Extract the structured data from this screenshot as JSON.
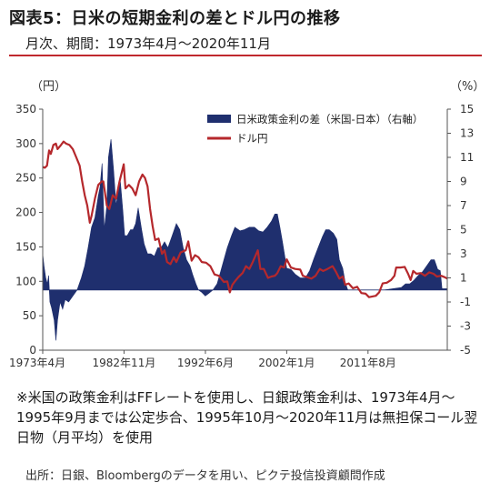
{
  "header": {
    "title": "図表5：日米の短期金利の差とドル円の推移",
    "subtitle": "月次、期間：1973年4月～2020年11月"
  },
  "footer": {
    "note": "※米国の政策金利はFFレートを使用し、日銀政策金利は、1973年4月～1995年9月までは公定歩合、1995年10月～2020年11月は無担保コール翌日物（月平均）を使用",
    "source": "出所：日銀、Bloombergのデータを用い、ピクテ投信投資顧問作成"
  },
  "chart_data": {
    "type": "area",
    "left_axis": {
      "unit": "（円）",
      "min": 0,
      "max": 350,
      "ticks": [
        0,
        50,
        100,
        150,
        200,
        250,
        300,
        350
      ]
    },
    "right_axis": {
      "unit": "（%）",
      "min": -5,
      "max": 15,
      "ticks": [
        -5,
        -3,
        -1,
        1,
        3,
        5,
        7,
        9,
        11,
        13,
        15
      ]
    },
    "x_axis": {
      "min": 1973.25,
      "max": 2020.92,
      "ticks": [
        {
          "value": 1973.25,
          "label": "1973年4月"
        },
        {
          "value": 1982.83,
          "label": "1982年11月"
        },
        {
          "value": 1992.42,
          "label": "1992年6月"
        },
        {
          "value": 2002.0,
          "label": "2002年1月"
        },
        {
          "value": 2011.58,
          "label": "2011年8月"
        }
      ]
    },
    "legend_position": "top-right",
    "colors": {
      "spread": "#1f2f6e",
      "usdjpy": "#b5282c",
      "axis": "#555555",
      "gridline": "#dddddd"
    },
    "series": [
      {
        "name": "日米政策金利の差（米国-日本）（右軸）",
        "kind": "area",
        "axis": "right",
        "points": [
          [
            1973.25,
            3.0
          ],
          [
            1973.4,
            2.0
          ],
          [
            1973.6,
            1.0
          ],
          [
            1973.8,
            0.5
          ],
          [
            1973.95,
            1.2
          ],
          [
            1974.1,
            -1.0
          ],
          [
            1974.3,
            -1.5
          ],
          [
            1974.6,
            -2.5
          ],
          [
            1974.8,
            -4.2
          ],
          [
            1975.0,
            -2.5
          ],
          [
            1975.3,
            -1.0
          ],
          [
            1975.6,
            -1.6
          ],
          [
            1975.9,
            -0.8
          ],
          [
            1976.3,
            -1.0
          ],
          [
            1976.8,
            -0.5
          ],
          [
            1977.3,
            0.0
          ],
          [
            1977.8,
            1.0
          ],
          [
            1978.2,
            2.0
          ],
          [
            1978.6,
            3.5
          ],
          [
            1979.0,
            5.2
          ],
          [
            1979.4,
            6.0
          ],
          [
            1979.8,
            7.8
          ],
          [
            1980.0,
            8.5
          ],
          [
            1980.25,
            10.5
          ],
          [
            1980.5,
            5.0
          ],
          [
            1980.8,
            7.0
          ],
          [
            1981.0,
            11.0
          ],
          [
            1981.3,
            12.5
          ],
          [
            1981.6,
            10.0
          ],
          [
            1981.9,
            7.0
          ],
          [
            1982.1,
            8.0
          ],
          [
            1982.4,
            9.0
          ],
          [
            1982.7,
            6.5
          ],
          [
            1982.9,
            4.5
          ],
          [
            1983.2,
            4.5
          ],
          [
            1983.6,
            5.0
          ],
          [
            1983.9,
            5.0
          ],
          [
            1984.2,
            5.5
          ],
          [
            1984.5,
            6.8
          ],
          [
            1984.9,
            5.0
          ],
          [
            1985.2,
            3.8
          ],
          [
            1985.6,
            3.0
          ],
          [
            1986.0,
            3.0
          ],
          [
            1986.4,
            2.8
          ],
          [
            1986.8,
            3.5
          ],
          [
            1987.2,
            3.5
          ],
          [
            1987.6,
            4.0
          ],
          [
            1988.0,
            3.5
          ],
          [
            1988.5,
            4.5
          ],
          [
            1989.0,
            5.5
          ],
          [
            1989.4,
            5.0
          ],
          [
            1989.8,
            3.5
          ],
          [
            1990.2,
            2.5
          ],
          [
            1990.6,
            2.0
          ],
          [
            1990.9,
            1.3
          ],
          [
            1991.3,
            0.5
          ],
          [
            1991.6,
            0.0
          ],
          [
            1992.0,
            -0.2
          ],
          [
            1992.4,
            -0.5
          ],
          [
            1992.8,
            -0.3
          ],
          [
            1993.3,
            0.0
          ],
          [
            1993.8,
            0.5
          ],
          [
            1994.2,
            1.5
          ],
          [
            1994.6,
            2.5
          ],
          [
            1995.0,
            3.5
          ],
          [
            1995.5,
            4.5
          ],
          [
            1995.9,
            5.2
          ],
          [
            1996.5,
            4.9
          ],
          [
            1997.0,
            5.0
          ],
          [
            1997.6,
            5.2
          ],
          [
            1998.2,
            5.2
          ],
          [
            1998.7,
            4.9
          ],
          [
            1999.2,
            4.8
          ],
          [
            1999.7,
            5.2
          ],
          [
            2000.2,
            5.7
          ],
          [
            2000.6,
            6.3
          ],
          [
            2000.9,
            6.3
          ],
          [
            2001.2,
            5.2
          ],
          [
            2001.5,
            4.0
          ],
          [
            2001.8,
            2.7
          ],
          [
            2002.0,
            1.8
          ],
          [
            2002.5,
            1.7
          ],
          [
            2003.0,
            1.3
          ],
          [
            2003.6,
            1.0
          ],
          [
            2004.2,
            1.0
          ],
          [
            2004.7,
            1.6
          ],
          [
            2005.2,
            2.6
          ],
          [
            2005.7,
            3.5
          ],
          [
            2006.2,
            4.4
          ],
          [
            2006.6,
            5.0
          ],
          [
            2007.0,
            5.0
          ],
          [
            2007.5,
            4.7
          ],
          [
            2007.9,
            4.2
          ],
          [
            2008.2,
            2.5
          ],
          [
            2008.6,
            1.8
          ],
          [
            2008.9,
            0.6
          ],
          [
            2009.2,
            0.0
          ],
          [
            2009.6,
            0.0
          ],
          [
            2010.5,
            0.0
          ],
          [
            2011.5,
            0.0
          ],
          [
            2012.5,
            0.0
          ],
          [
            2013.5,
            0.0
          ],
          [
            2014.5,
            0.1
          ],
          [
            2015.5,
            0.2
          ],
          [
            2016.0,
            0.5
          ],
          [
            2016.5,
            0.5
          ],
          [
            2017.0,
            0.8
          ],
          [
            2017.5,
            1.2
          ],
          [
            2018.0,
            1.5
          ],
          [
            2018.5,
            2.0
          ],
          [
            2019.0,
            2.5
          ],
          [
            2019.4,
            2.5
          ],
          [
            2019.8,
            1.7
          ],
          [
            2020.1,
            1.6
          ],
          [
            2020.3,
            0.1
          ],
          [
            2020.92,
            0.1
          ]
        ]
      },
      {
        "name": "ドル円",
        "kind": "line",
        "axis": "left",
        "points": [
          [
            1973.25,
            266
          ],
          [
            1973.5,
            265
          ],
          [
            1973.75,
            268
          ],
          [
            1974.0,
            290
          ],
          [
            1974.2,
            285
          ],
          [
            1974.5,
            298
          ],
          [
            1974.8,
            300
          ],
          [
            1975.0,
            292
          ],
          [
            1975.4,
            298
          ],
          [
            1975.7,
            303
          ],
          [
            1976.0,
            300
          ],
          [
            1976.4,
            298
          ],
          [
            1976.8,
            292
          ],
          [
            1977.2,
            280
          ],
          [
            1977.6,
            268
          ],
          [
            1977.9,
            245
          ],
          [
            1978.2,
            225
          ],
          [
            1978.5,
            210
          ],
          [
            1978.8,
            185
          ],
          [
            1979.0,
            195
          ],
          [
            1979.4,
            220
          ],
          [
            1979.8,
            240
          ],
          [
            1980.2,
            245
          ],
          [
            1980.4,
            245
          ],
          [
            1980.8,
            210
          ],
          [
            1981.1,
            205
          ],
          [
            1981.5,
            225
          ],
          [
            1981.9,
            220
          ],
          [
            1982.3,
            245
          ],
          [
            1982.8,
            270
          ],
          [
            1983.0,
            235
          ],
          [
            1983.4,
            240
          ],
          [
            1983.8,
            235
          ],
          [
            1984.2,
            225
          ],
          [
            1984.6,
            245
          ],
          [
            1985.0,
            255
          ],
          [
            1985.3,
            250
          ],
          [
            1985.6,
            238
          ],
          [
            1985.9,
            205
          ],
          [
            1986.2,
            180
          ],
          [
            1986.5,
            160
          ],
          [
            1986.9,
            162
          ],
          [
            1987.3,
            140
          ],
          [
            1987.6,
            145
          ],
          [
            1987.9,
            128
          ],
          [
            1988.3,
            125
          ],
          [
            1988.7,
            135
          ],
          [
            1989.0,
            128
          ],
          [
            1989.5,
            142
          ],
          [
            1990.1,
            145
          ],
          [
            1990.4,
            158
          ],
          [
            1990.8,
            130
          ],
          [
            1991.2,
            138
          ],
          [
            1991.6,
            135
          ],
          [
            1992.0,
            128
          ],
          [
            1992.5,
            127
          ],
          [
            1993.0,
            122
          ],
          [
            1993.5,
            110
          ],
          [
            1994.0,
            108
          ],
          [
            1994.6,
            99
          ],
          [
            1995.0,
            100
          ],
          [
            1995.3,
            84
          ],
          [
            1995.6,
            95
          ],
          [
            1995.9,
            100
          ],
          [
            1996.3,
            106
          ],
          [
            1996.8,
            112
          ],
          [
            1997.2,
            122
          ],
          [
            1997.6,
            118
          ],
          [
            1998.0,
            128
          ],
          [
            1998.6,
            145
          ],
          [
            1998.9,
            118
          ],
          [
            1999.3,
            118
          ],
          [
            1999.8,
            105
          ],
          [
            2000.2,
            107
          ],
          [
            2000.6,
            108
          ],
          [
            2000.9,
            112
          ],
          [
            2001.3,
            122
          ],
          [
            2001.7,
            120
          ],
          [
            2002.0,
            132
          ],
          [
            2002.5,
            120
          ],
          [
            2003.0,
            118
          ],
          [
            2003.6,
            117
          ],
          [
            2003.9,
            108
          ],
          [
            2004.4,
            106
          ],
          [
            2004.9,
            104
          ],
          [
            2005.4,
            108
          ],
          [
            2005.9,
            118
          ],
          [
            2006.3,
            115
          ],
          [
            2006.8,
            118
          ],
          [
            2007.4,
            122
          ],
          [
            2007.8,
            114
          ],
          [
            2008.2,
            104
          ],
          [
            2008.6,
            107
          ],
          [
            2008.9,
            95
          ],
          [
            2009.3,
            97
          ],
          [
            2009.8,
            90
          ],
          [
            2010.3,
            92
          ],
          [
            2010.8,
            83
          ],
          [
            2011.3,
            82
          ],
          [
            2011.7,
            77
          ],
          [
            2012.1,
            78
          ],
          [
            2012.5,
            79
          ],
          [
            2012.9,
            84
          ],
          [
            2013.3,
            97
          ],
          [
            2013.8,
            98
          ],
          [
            2014.3,
            102
          ],
          [
            2014.7,
            108
          ],
          [
            2014.9,
            120
          ],
          [
            2015.4,
            120
          ],
          [
            2015.9,
            121
          ],
          [
            2016.3,
            111
          ],
          [
            2016.6,
            102
          ],
          [
            2016.9,
            115
          ],
          [
            2017.3,
            111
          ],
          [
            2017.8,
            112
          ],
          [
            2018.3,
            108
          ],
          [
            2018.8,
            113
          ],
          [
            2019.3,
            111
          ],
          [
            2019.7,
            107
          ],
          [
            2020.2,
            108
          ],
          [
            2020.6,
            106
          ],
          [
            2020.92,
            104
          ]
        ]
      }
    ]
  }
}
